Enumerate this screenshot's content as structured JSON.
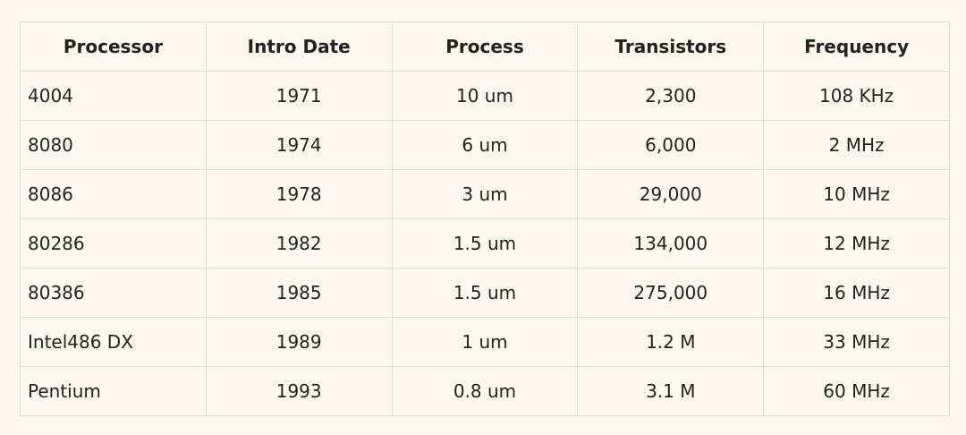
{
  "table": {
    "columns": [
      "Processor",
      "Intro Date",
      "Process",
      "Transistors",
      "Frequency"
    ],
    "rows": [
      [
        "4004",
        "1971",
        "10 um",
        "2,300",
        "108 KHz"
      ],
      [
        "8080",
        "1974",
        "6 um",
        "6,000",
        "2 MHz"
      ],
      [
        "8086",
        "1978",
        "3 um",
        "29,000",
        "10 MHz"
      ],
      [
        "80286",
        "1982",
        "1.5 um",
        "134,000",
        "12 MHz"
      ],
      [
        "80386",
        "1985",
        "1.5 um",
        "275,000",
        "16 MHz"
      ],
      [
        "Intel486 DX",
        "1989",
        "1 um",
        "1.2 M",
        "33 MHz"
      ],
      [
        "Pentium",
        "1993",
        "0.8 um",
        "3.1 M",
        "60 MHz"
      ]
    ]
  }
}
